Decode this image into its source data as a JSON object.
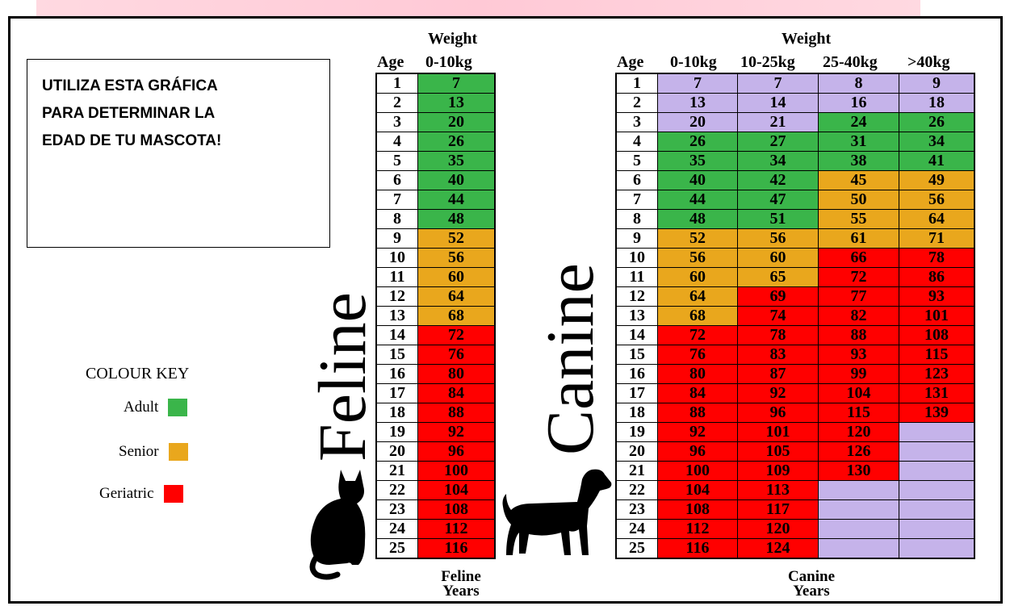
{
  "note": {
    "lines": [
      "UTILIZA ESTA GRÁFICA",
      "PARA DETERMINAR LA",
      "EDAD DE TU MASCOTA!"
    ]
  },
  "key": {
    "title": "COLOUR KEY",
    "items": [
      {
        "label": "Adult",
        "color": "#3ab54a"
      },
      {
        "label": "Senior",
        "color": "#e9a71d"
      },
      {
        "label": "Geriatric",
        "color": "#ff0000"
      }
    ],
    "blank_color": "#c5b3ea"
  },
  "feline": {
    "label": "Feline",
    "weight_label": "Weight",
    "age_label": "Age",
    "columns": [
      "0-10kg"
    ],
    "footer": [
      "Feline",
      "Years"
    ],
    "rows": [
      {
        "age": "1",
        "values": [
          {
            "v": "7",
            "c": "adult"
          }
        ]
      },
      {
        "age": "2",
        "values": [
          {
            "v": "13",
            "c": "adult"
          }
        ]
      },
      {
        "age": "3",
        "values": [
          {
            "v": "20",
            "c": "adult"
          }
        ]
      },
      {
        "age": "4",
        "values": [
          {
            "v": "26",
            "c": "adult"
          }
        ]
      },
      {
        "age": "5",
        "values": [
          {
            "v": "35",
            "c": "adult"
          }
        ]
      },
      {
        "age": "6",
        "values": [
          {
            "v": "40",
            "c": "adult"
          }
        ]
      },
      {
        "age": "7",
        "values": [
          {
            "v": "44",
            "c": "adult"
          }
        ]
      },
      {
        "age": "8",
        "values": [
          {
            "v": "48",
            "c": "adult"
          }
        ]
      },
      {
        "age": "9",
        "values": [
          {
            "v": "52",
            "c": "senior"
          }
        ]
      },
      {
        "age": "10",
        "values": [
          {
            "v": "56",
            "c": "senior"
          }
        ]
      },
      {
        "age": "11",
        "values": [
          {
            "v": "60",
            "c": "senior"
          }
        ]
      },
      {
        "age": "12",
        "values": [
          {
            "v": "64",
            "c": "senior"
          }
        ]
      },
      {
        "age": "13",
        "values": [
          {
            "v": "68",
            "c": "senior"
          }
        ]
      },
      {
        "age": "14",
        "values": [
          {
            "v": "72",
            "c": "geriatric"
          }
        ]
      },
      {
        "age": "15",
        "values": [
          {
            "v": "76",
            "c": "geriatric"
          }
        ]
      },
      {
        "age": "16",
        "values": [
          {
            "v": "80",
            "c": "geriatric"
          }
        ]
      },
      {
        "age": "17",
        "values": [
          {
            "v": "84",
            "c": "geriatric"
          }
        ]
      },
      {
        "age": "18",
        "values": [
          {
            "v": "88",
            "c": "geriatric"
          }
        ]
      },
      {
        "age": "19",
        "values": [
          {
            "v": "92",
            "c": "geriatric"
          }
        ]
      },
      {
        "age": "20",
        "values": [
          {
            "v": "96",
            "c": "geriatric"
          }
        ]
      },
      {
        "age": "21",
        "values": [
          {
            "v": "100",
            "c": "geriatric"
          }
        ]
      },
      {
        "age": "22",
        "values": [
          {
            "v": "104",
            "c": "geriatric"
          }
        ]
      },
      {
        "age": "23",
        "values": [
          {
            "v": "108",
            "c": "geriatric"
          }
        ]
      },
      {
        "age": "24",
        "values": [
          {
            "v": "112",
            "c": "geriatric"
          }
        ]
      },
      {
        "age": "25",
        "values": [
          {
            "v": "116",
            "c": "geriatric"
          }
        ]
      }
    ]
  },
  "canine": {
    "label": "Canine",
    "weight_label": "Weight",
    "age_label": "Age",
    "columns": [
      "0-10kg",
      "10-25kg",
      "25-40kg",
      ">40kg"
    ],
    "footer": [
      "Canine",
      "Years"
    ],
    "rows": [
      {
        "age": "1",
        "values": [
          {
            "v": "7",
            "c": "blank"
          },
          {
            "v": "7",
            "c": "blank"
          },
          {
            "v": "8",
            "c": "blank"
          },
          {
            "v": "9",
            "c": "blank"
          }
        ]
      },
      {
        "age": "2",
        "values": [
          {
            "v": "13",
            "c": "blank"
          },
          {
            "v": "14",
            "c": "blank"
          },
          {
            "v": "16",
            "c": "blank"
          },
          {
            "v": "18",
            "c": "blank"
          }
        ]
      },
      {
        "age": "3",
        "values": [
          {
            "v": "20",
            "c": "blank"
          },
          {
            "v": "21",
            "c": "blank"
          },
          {
            "v": "24",
            "c": "adult"
          },
          {
            "v": "26",
            "c": "adult"
          }
        ]
      },
      {
        "age": "4",
        "values": [
          {
            "v": "26",
            "c": "adult"
          },
          {
            "v": "27",
            "c": "adult"
          },
          {
            "v": "31",
            "c": "adult"
          },
          {
            "v": "34",
            "c": "adult"
          }
        ]
      },
      {
        "age": "5",
        "values": [
          {
            "v": "35",
            "c": "adult"
          },
          {
            "v": "34",
            "c": "adult"
          },
          {
            "v": "38",
            "c": "adult"
          },
          {
            "v": "41",
            "c": "adult"
          }
        ]
      },
      {
        "age": "6",
        "values": [
          {
            "v": "40",
            "c": "adult"
          },
          {
            "v": "42",
            "c": "adult"
          },
          {
            "v": "45",
            "c": "senior"
          },
          {
            "v": "49",
            "c": "senior"
          }
        ]
      },
      {
        "age": "7",
        "values": [
          {
            "v": "44",
            "c": "adult"
          },
          {
            "v": "47",
            "c": "adult"
          },
          {
            "v": "50",
            "c": "senior"
          },
          {
            "v": "56",
            "c": "senior"
          }
        ]
      },
      {
        "age": "8",
        "values": [
          {
            "v": "48",
            "c": "adult"
          },
          {
            "v": "51",
            "c": "adult"
          },
          {
            "v": "55",
            "c": "senior"
          },
          {
            "v": "64",
            "c": "senior"
          }
        ]
      },
      {
        "age": "9",
        "values": [
          {
            "v": "52",
            "c": "senior"
          },
          {
            "v": "56",
            "c": "senior"
          },
          {
            "v": "61",
            "c": "senior"
          },
          {
            "v": "71",
            "c": "senior"
          }
        ]
      },
      {
        "age": "10",
        "values": [
          {
            "v": "56",
            "c": "senior"
          },
          {
            "v": "60",
            "c": "senior"
          },
          {
            "v": "66",
            "c": "geriatric"
          },
          {
            "v": "78",
            "c": "geriatric"
          }
        ]
      },
      {
        "age": "11",
        "values": [
          {
            "v": "60",
            "c": "senior"
          },
          {
            "v": "65",
            "c": "senior"
          },
          {
            "v": "72",
            "c": "geriatric"
          },
          {
            "v": "86",
            "c": "geriatric"
          }
        ]
      },
      {
        "age": "12",
        "values": [
          {
            "v": "64",
            "c": "senior"
          },
          {
            "v": "69",
            "c": "geriatric"
          },
          {
            "v": "77",
            "c": "geriatric"
          },
          {
            "v": "93",
            "c": "geriatric"
          }
        ]
      },
      {
        "age": "13",
        "values": [
          {
            "v": "68",
            "c": "senior"
          },
          {
            "v": "74",
            "c": "geriatric"
          },
          {
            "v": "82",
            "c": "geriatric"
          },
          {
            "v": "101",
            "c": "geriatric"
          }
        ]
      },
      {
        "age": "14",
        "values": [
          {
            "v": "72",
            "c": "geriatric"
          },
          {
            "v": "78",
            "c": "geriatric"
          },
          {
            "v": "88",
            "c": "geriatric"
          },
          {
            "v": "108",
            "c": "geriatric"
          }
        ]
      },
      {
        "age": "15",
        "values": [
          {
            "v": "76",
            "c": "geriatric"
          },
          {
            "v": "83",
            "c": "geriatric"
          },
          {
            "v": "93",
            "c": "geriatric"
          },
          {
            "v": "115",
            "c": "geriatric"
          }
        ]
      },
      {
        "age": "16",
        "values": [
          {
            "v": "80",
            "c": "geriatric"
          },
          {
            "v": "87",
            "c": "geriatric"
          },
          {
            "v": "99",
            "c": "geriatric"
          },
          {
            "v": "123",
            "c": "geriatric"
          }
        ]
      },
      {
        "age": "17",
        "values": [
          {
            "v": "84",
            "c": "geriatric"
          },
          {
            "v": "92",
            "c": "geriatric"
          },
          {
            "v": "104",
            "c": "geriatric"
          },
          {
            "v": "131",
            "c": "geriatric"
          }
        ]
      },
      {
        "age": "18",
        "values": [
          {
            "v": "88",
            "c": "geriatric"
          },
          {
            "v": "96",
            "c": "geriatric"
          },
          {
            "v": "115",
            "c": "geriatric"
          },
          {
            "v": "139",
            "c": "geriatric"
          }
        ]
      },
      {
        "age": "19",
        "values": [
          {
            "v": "92",
            "c": "geriatric"
          },
          {
            "v": "101",
            "c": "geriatric"
          },
          {
            "v": "120",
            "c": "geriatric"
          },
          {
            "v": "",
            "c": "blank"
          }
        ]
      },
      {
        "age": "20",
        "values": [
          {
            "v": "96",
            "c": "geriatric"
          },
          {
            "v": "105",
            "c": "geriatric"
          },
          {
            "v": "126",
            "c": "geriatric"
          },
          {
            "v": "",
            "c": "blank"
          }
        ]
      },
      {
        "age": "21",
        "values": [
          {
            "v": "100",
            "c": "geriatric"
          },
          {
            "v": "109",
            "c": "geriatric"
          },
          {
            "v": "130",
            "c": "geriatric"
          },
          {
            "v": "",
            "c": "blank"
          }
        ]
      },
      {
        "age": "22",
        "values": [
          {
            "v": "104",
            "c": "geriatric"
          },
          {
            "v": "113",
            "c": "geriatric"
          },
          {
            "v": "",
            "c": "blank"
          },
          {
            "v": "",
            "c": "blank"
          }
        ]
      },
      {
        "age": "23",
        "values": [
          {
            "v": "108",
            "c": "geriatric"
          },
          {
            "v": "117",
            "c": "geriatric"
          },
          {
            "v": "",
            "c": "blank"
          },
          {
            "v": "",
            "c": "blank"
          }
        ]
      },
      {
        "age": "24",
        "values": [
          {
            "v": "112",
            "c": "geriatric"
          },
          {
            "v": "120",
            "c": "geriatric"
          },
          {
            "v": "",
            "c": "blank"
          },
          {
            "v": "",
            "c": "blank"
          }
        ]
      },
      {
        "age": "25",
        "values": [
          {
            "v": "116",
            "c": "geriatric"
          },
          {
            "v": "124",
            "c": "geriatric"
          },
          {
            "v": "",
            "c": "blank"
          },
          {
            "v": "",
            "c": "blank"
          }
        ]
      }
    ]
  },
  "icons": {
    "feline": "cat-silhouette-icon",
    "canine": "dog-silhouette-icon"
  }
}
